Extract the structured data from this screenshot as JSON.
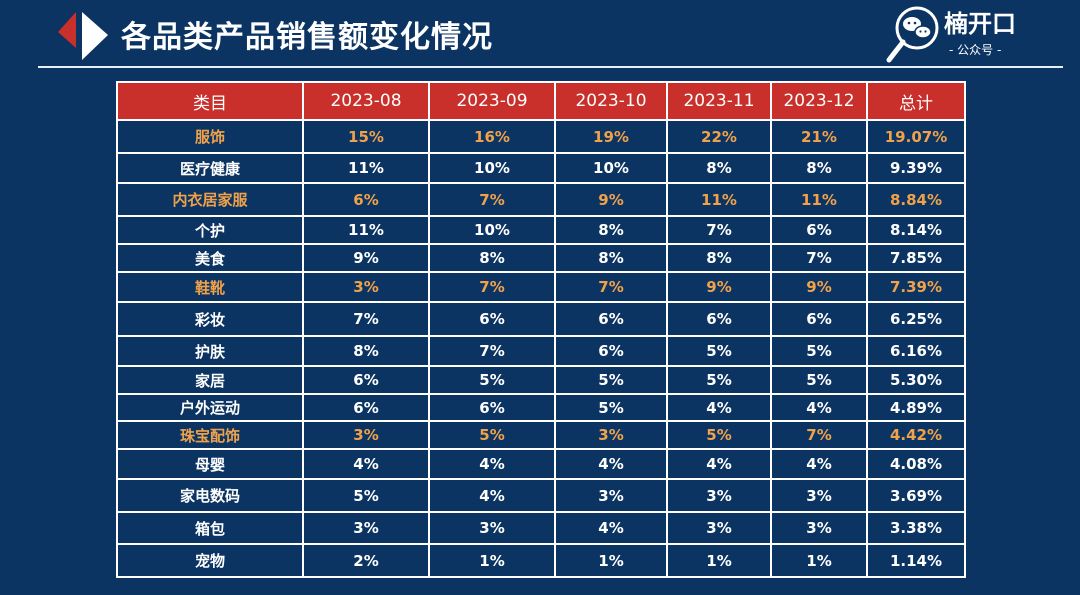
{
  "header": {
    "title": "各品类产品销售额变化情况"
  },
  "brand": {
    "name": "楠开口",
    "subtitle": "- 公众号 -"
  },
  "colors": {
    "background": "#0b3463",
    "header_row": "#c9302c",
    "highlight_text": "#f0a24a",
    "normal_text": "#ffffff"
  },
  "chart_data": {
    "type": "table",
    "columns": [
      "类目",
      "2023-08",
      "2023-09",
      "2023-10",
      "2023-11",
      "2023-12",
      "总计"
    ],
    "rows": [
      {
        "category": "服饰",
        "values": [
          "15%",
          "16%",
          "19%",
          "22%",
          "21%",
          "19.07%"
        ],
        "highlight": true
      },
      {
        "category": "医疗健康",
        "values": [
          "11%",
          "10%",
          "10%",
          "8%",
          "8%",
          "9.39%"
        ],
        "highlight": false
      },
      {
        "category": "内衣居家服",
        "values": [
          "6%",
          "7%",
          "9%",
          "11%",
          "11%",
          "8.84%"
        ],
        "highlight": true
      },
      {
        "category": "个护",
        "values": [
          "11%",
          "10%",
          "8%",
          "7%",
          "6%",
          "8.14%"
        ],
        "highlight": false
      },
      {
        "category": "美食",
        "values": [
          "9%",
          "8%",
          "8%",
          "8%",
          "7%",
          "7.85%"
        ],
        "highlight": false
      },
      {
        "category": "鞋靴",
        "values": [
          "3%",
          "7%",
          "7%",
          "9%",
          "9%",
          "7.39%"
        ],
        "highlight": true
      },
      {
        "category": "彩妆",
        "values": [
          "7%",
          "6%",
          "6%",
          "6%",
          "6%",
          "6.25%"
        ],
        "highlight": false
      },
      {
        "category": "护肤",
        "values": [
          "8%",
          "7%",
          "6%",
          "5%",
          "5%",
          "6.16%"
        ],
        "highlight": false
      },
      {
        "category": "家居",
        "values": [
          "6%",
          "5%",
          "5%",
          "5%",
          "5%",
          "5.30%"
        ],
        "highlight": false
      },
      {
        "category": "户外运动",
        "values": [
          "6%",
          "6%",
          "5%",
          "4%",
          "4%",
          "4.89%"
        ],
        "highlight": false
      },
      {
        "category": "珠宝配饰",
        "values": [
          "3%",
          "5%",
          "3%",
          "5%",
          "7%",
          "4.42%"
        ],
        "highlight": true
      },
      {
        "category": "母婴",
        "values": [
          "4%",
          "4%",
          "4%",
          "4%",
          "4%",
          "4.08%"
        ],
        "highlight": false
      },
      {
        "category": "家电数码",
        "values": [
          "5%",
          "4%",
          "3%",
          "3%",
          "3%",
          "3.69%"
        ],
        "highlight": false
      },
      {
        "category": "箱包",
        "values": [
          "3%",
          "3%",
          "4%",
          "3%",
          "3%",
          "3.38%"
        ],
        "highlight": false
      },
      {
        "category": "宠物",
        "values": [
          "2%",
          "1%",
          "1%",
          "1%",
          "1%",
          "1.14%"
        ],
        "highlight": false
      }
    ]
  }
}
